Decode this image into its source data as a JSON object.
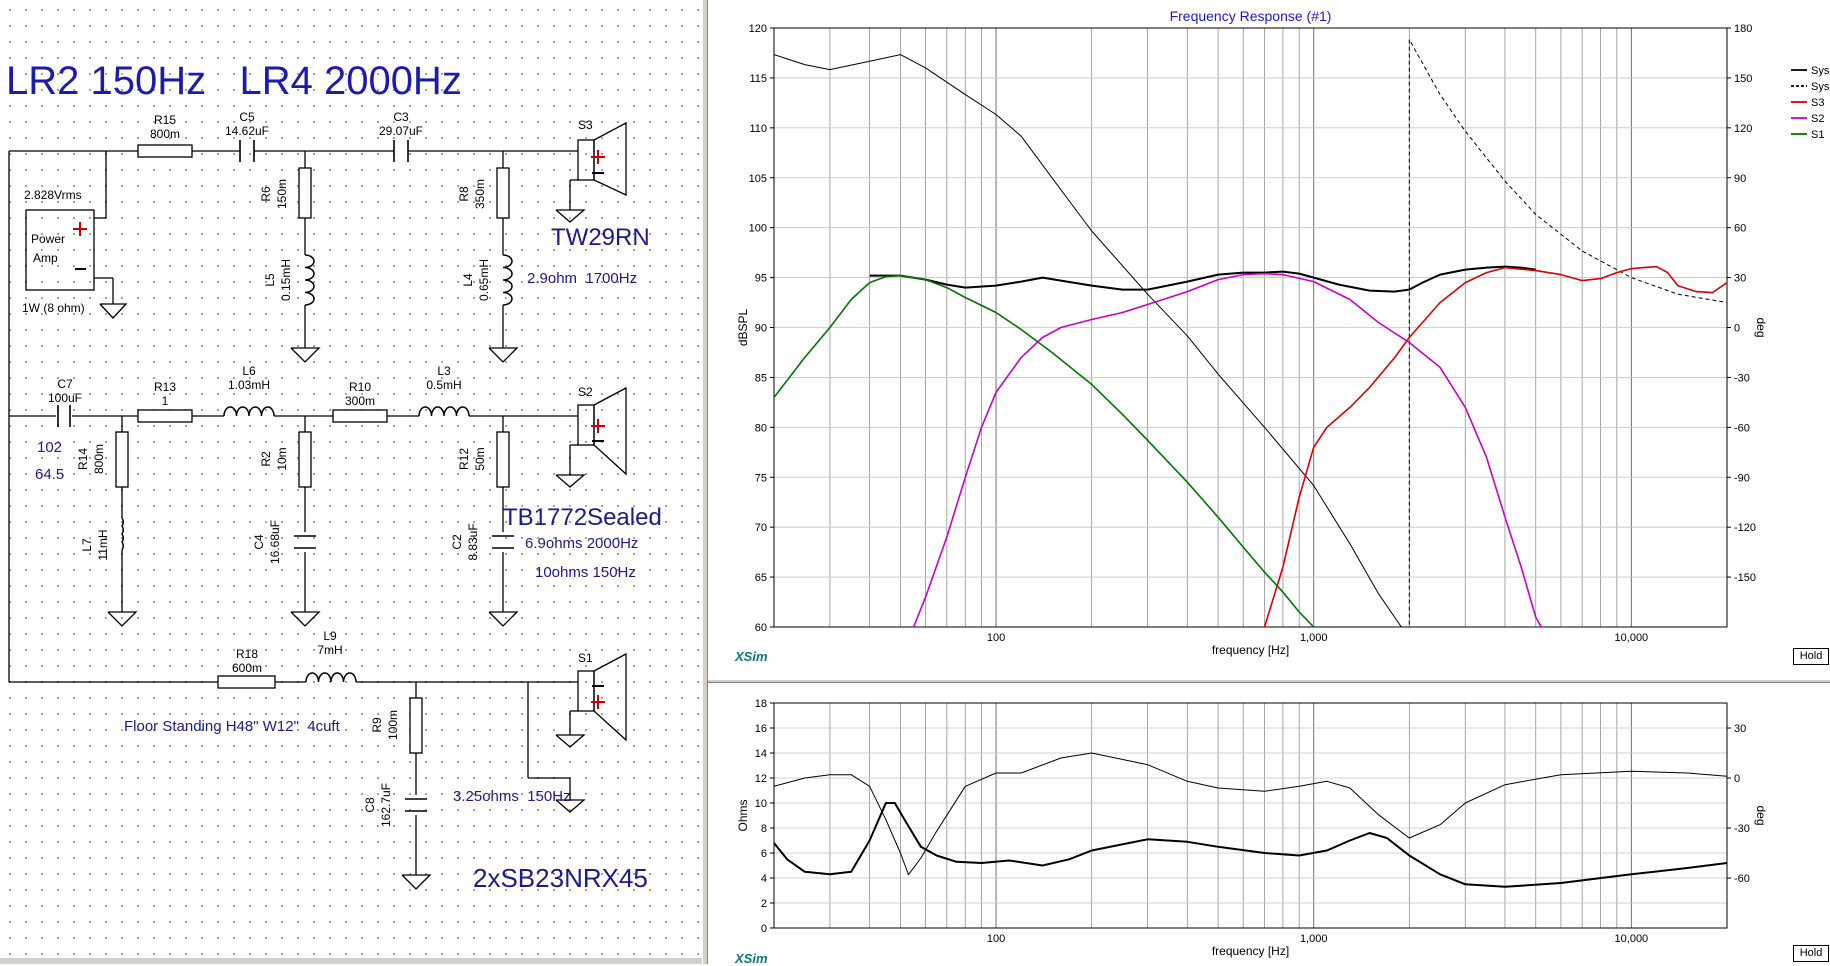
{
  "schematic": {
    "heading": "LR2 150Hz   LR4 2000Hz",
    "source": {
      "voltage": "2.828Vrms",
      "label1": "Power",
      "label2": "Amp",
      "load": "1W (8 ohm)"
    },
    "components": [
      {
        "id": "R15",
        "value": "800m"
      },
      {
        "id": "C5",
        "value": "14.62uF"
      },
      {
        "id": "C3",
        "value": "29.07uF"
      },
      {
        "id": "R6",
        "value": "150m"
      },
      {
        "id": "L5",
        "value": "0.15mH"
      },
      {
        "id": "R8",
        "value": "350m"
      },
      {
        "id": "L4",
        "value": "0.65mH"
      },
      {
        "id": "C7",
        "value": "100uF"
      },
      {
        "id": "R13",
        "value": "1"
      },
      {
        "id": "L6",
        "value": "1.03mH"
      },
      {
        "id": "R10",
        "value": "300m"
      },
      {
        "id": "L3",
        "value": "0.5mH"
      },
      {
        "id": "R14",
        "value": "800m"
      },
      {
        "id": "L7",
        "value": "11mH"
      },
      {
        "id": "R2",
        "value": "10m"
      },
      {
        "id": "C4",
        "value": "16.68uF"
      },
      {
        "id": "R12",
        "value": "50m"
      },
      {
        "id": "C2",
        "value": "8.83uF"
      },
      {
        "id": "R18",
        "value": "600m"
      },
      {
        "id": "L9",
        "value": "7mH"
      },
      {
        "id": "R9",
        "value": "100m"
      },
      {
        "id": "C8",
        "value": "162.7uF"
      }
    ],
    "speakers": {
      "s3": "S3",
      "s2": "S2",
      "s1": "S1"
    },
    "notes": {
      "tw_name": "TW29RN",
      "tw_info": "2.9ohm  1700Hz",
      "note102": "102",
      "note645": "64.5",
      "tb_name": "TB1772Sealed",
      "tb_info1": "6.9ohms 2000Hz",
      "tb_info2": "10ohms 150Hz",
      "floor": "Floor Standing H48\" W12\"  4cuft",
      "sb_info": "3.25ohms  150Hz",
      "sb_name": "2xSB23NRX45"
    }
  },
  "fr_panel": {
    "hold_label": "Hold",
    "brand": "XSim"
  },
  "imp_panel": {
    "hold_label": "Hold",
    "brand": "XSim"
  },
  "chart_data": [
    {
      "type": "line",
      "title": "Frequency Response (#1)",
      "xlabel": "frequency [Hz]",
      "ylabel": "dBSPL",
      "y2label": "deg",
      "xscale": "log",
      "xlim": [
        20,
        20000
      ],
      "ylim": [
        60,
        120
      ],
      "y2lim": [
        -180,
        180
      ],
      "x_ticks": [
        100,
        1000,
        10000
      ],
      "x_tick_labels": [
        "100",
        "1,000",
        "10,000"
      ],
      "y_ticks": [
        60,
        65,
        70,
        75,
        80,
        85,
        90,
        95,
        100,
        105,
        110,
        115,
        120
      ],
      "y2_ticks": [
        -150,
        -120,
        -90,
        -60,
        -30,
        0,
        30,
        60,
        90,
        120,
        150,
        180
      ],
      "grid": true,
      "legend_position": "right",
      "legend": [
        {
          "name": "Sys",
          "color": "#000000",
          "dash": false
        },
        {
          "name": "Sys°",
          "color": "#000000",
          "dash": true
        },
        {
          "name": "S3",
          "color": "#dd0000",
          "dash": false
        },
        {
          "name": "S2",
          "color": "#cc00cc",
          "dash": false
        },
        {
          "name": "S1",
          "color": "#007700",
          "dash": false
        }
      ],
      "series": [
        {
          "name": "Sys",
          "axis": "left",
          "color": "#000000",
          "width": 2,
          "dash": false,
          "points": [
            [
              40,
              95.2
            ],
            [
              50,
              95.2
            ],
            [
              60,
              94.8
            ],
            [
              70,
              94.3
            ],
            [
              80,
              94.0
            ],
            [
              100,
              94.2
            ],
            [
              120,
              94.6
            ],
            [
              140,
              95.0
            ],
            [
              160,
              94.7
            ],
            [
              200,
              94.2
            ],
            [
              250,
              93.8
            ],
            [
              300,
              93.8
            ],
            [
              400,
              94.6
            ],
            [
              500,
              95.3
            ],
            [
              600,
              95.5
            ],
            [
              700,
              95.5
            ],
            [
              800,
              95.6
            ],
            [
              900,
              95.4
            ],
            [
              1000,
              95.0
            ],
            [
              1200,
              94.3
            ],
            [
              1500,
              93.7
            ],
            [
              1800,
              93.6
            ],
            [
              2000,
              93.8
            ],
            [
              2200,
              94.5
            ],
            [
              2500,
              95.3
            ],
            [
              3000,
              95.8
            ],
            [
              3500,
              96.0
            ],
            [
              4000,
              96.1
            ],
            [
              4500,
              96.0
            ],
            [
              5000,
              95.8
            ]
          ]
        },
        {
          "name": "Sys°",
          "axis": "right",
          "color": "#000000",
          "width": 1,
          "dash": false,
          "points": [
            [
              20,
              164
            ],
            [
              25,
              158
            ],
            [
              30,
              155
            ],
            [
              40,
              160
            ],
            [
              50,
              164
            ],
            [
              60,
              156
            ],
            [
              80,
              140
            ],
            [
              100,
              128
            ],
            [
              120,
              115
            ],
            [
              150,
              90
            ],
            [
              200,
              58
            ],
            [
              300,
              20
            ],
            [
              400,
              -5
            ],
            [
              500,
              -28
            ],
            [
              700,
              -60
            ],
            [
              1000,
              -95
            ],
            [
              1300,
              -130
            ],
            [
              1600,
              -160
            ],
            [
              2000,
              -187
            ]
          ]
        },
        {
          "name": "Sys°",
          "axis": "right",
          "color": "#000000",
          "width": 1,
          "dash": true,
          "points": [
            [
              2000,
              -187
            ],
            [
              2000,
              173
            ],
            [
              2500,
              140
            ],
            [
              3000,
              118
            ],
            [
              4000,
              88
            ],
            [
              5000,
              68
            ],
            [
              7000,
              46
            ],
            [
              10000,
              30
            ],
            [
              14000,
              20
            ],
            [
              20000,
              15
            ]
          ]
        },
        {
          "name": "S3",
          "axis": "left",
          "color": "#dd0000",
          "width": 1.6,
          "dash": false,
          "points": [
            [
              700,
              60
            ],
            [
              800,
              66
            ],
            [
              900,
              73
            ],
            [
              1000,
              78
            ],
            [
              1100,
              80
            ],
            [
              1300,
              82
            ],
            [
              1500,
              84
            ],
            [
              1800,
              87
            ],
            [
              2000,
              89
            ],
            [
              2500,
              92.5
            ],
            [
              3000,
              94.5
            ],
            [
              3500,
              95.5
            ],
            [
              4000,
              96.0
            ],
            [
              5000,
              95.7
            ],
            [
              6000,
              95.3
            ],
            [
              7000,
              94.7
            ],
            [
              8000,
              94.9
            ],
            [
              9000,
              95.5
            ],
            [
              10000,
              95.9
            ],
            [
              12000,
              96.1
            ],
            [
              13000,
              95.5
            ],
            [
              14000,
              94.2
            ],
            [
              16000,
              93.6
            ],
            [
              18000,
              93.5
            ],
            [
              20000,
              94.5
            ]
          ]
        },
        {
          "name": "S2",
          "axis": "left",
          "color": "#cc00cc",
          "width": 1.6,
          "dash": false,
          "points": [
            [
              55,
              60
            ],
            [
              60,
              63
            ],
            [
              70,
              69
            ],
            [
              80,
              75
            ],
            [
              90,
              80
            ],
            [
              100,
              83.5
            ],
            [
              120,
              87
            ],
            [
              140,
              89
            ],
            [
              160,
              90
            ],
            [
              200,
              90.8
            ],
            [
              250,
              91.5
            ],
            [
              300,
              92.3
            ],
            [
              400,
              93.6
            ],
            [
              500,
              94.8
            ],
            [
              600,
              95.3
            ],
            [
              700,
              95.4
            ],
            [
              800,
              95.3
            ],
            [
              1000,
              94.6
            ],
            [
              1300,
              92.8
            ],
            [
              1600,
              90.5
            ],
            [
              2000,
              88.5
            ],
            [
              2500,
              86
            ],
            [
              3000,
              82
            ],
            [
              3500,
              77
            ],
            [
              4000,
              71
            ],
            [
              4500,
              66
            ],
            [
              5000,
              61
            ],
            [
              5200,
              60
            ]
          ]
        },
        {
          "name": "S1",
          "axis": "left",
          "color": "#007700",
          "width": 1.6,
          "dash": false,
          "points": [
            [
              20,
              83
            ],
            [
              25,
              87
            ],
            [
              30,
              90
            ],
            [
              35,
              92.8
            ],
            [
              40,
              94.5
            ],
            [
              45,
              95.1
            ],
            [
              50,
              95.2
            ],
            [
              60,
              94.8
            ],
            [
              70,
              94
            ],
            [
              80,
              93
            ],
            [
              100,
              91.5
            ],
            [
              120,
              89.8
            ],
            [
              150,
              87.5
            ],
            [
              200,
              84.3
            ],
            [
              250,
              81.3
            ],
            [
              300,
              78.7
            ],
            [
              400,
              74.5
            ],
            [
              500,
              71
            ],
            [
              600,
              68
            ],
            [
              700,
              65.5
            ],
            [
              800,
              63.5
            ],
            [
              900,
              61.5
            ],
            [
              1000,
              60
            ]
          ]
        }
      ]
    },
    {
      "type": "line",
      "title": "",
      "xlabel": "frequency [Hz]",
      "ylabel": "Ohms",
      "y2label": "deg",
      "xscale": "log",
      "xlim": [
        20,
        20000
      ],
      "ylim": [
        0,
        18
      ],
      "y2lim": [
        -90,
        45
      ],
      "x_ticks": [
        100,
        1000,
        10000
      ],
      "x_tick_labels": [
        "100",
        "1,000",
        "10,000"
      ],
      "y_ticks": [
        0,
        2,
        4,
        6,
        8,
        10,
        12,
        14,
        16,
        18
      ],
      "y2_ticks": [
        -60,
        -30,
        0,
        30
      ],
      "grid": true,
      "series": [
        {
          "name": "Ohms",
          "axis": "left",
          "color": "#000000",
          "width": 2,
          "dash": false,
          "points": [
            [
              20,
              6.8
            ],
            [
              22,
              5.5
            ],
            [
              25,
              4.5
            ],
            [
              30,
              4.3
            ],
            [
              35,
              4.5
            ],
            [
              40,
              7
            ],
            [
              45,
              10
            ],
            [
              48,
              10
            ],
            [
              52,
              8.5
            ],
            [
              58,
              6.5
            ],
            [
              65,
              5.8
            ],
            [
              75,
              5.3
            ],
            [
              90,
              5.2
            ],
            [
              110,
              5.4
            ],
            [
              140,
              5.0
            ],
            [
              170,
              5.5
            ],
            [
              200,
              6.2
            ],
            [
              300,
              7.1
            ],
            [
              400,
              6.9
            ],
            [
              500,
              6.5
            ],
            [
              700,
              6.0
            ],
            [
              900,
              5.8
            ],
            [
              1100,
              6.2
            ],
            [
              1300,
              7.0
            ],
            [
              1500,
              7.6
            ],
            [
              1700,
              7.2
            ],
            [
              2000,
              5.8
            ],
            [
              2500,
              4.3
            ],
            [
              3000,
              3.5
            ],
            [
              4000,
              3.3
            ],
            [
              6000,
              3.6
            ],
            [
              10000,
              4.3
            ],
            [
              15000,
              4.8
            ],
            [
              20000,
              5.2
            ]
          ]
        },
        {
          "name": "Phase",
          "axis": "right",
          "color": "#000000",
          "width": 1,
          "dash": false,
          "points": [
            [
              20,
              -5
            ],
            [
              25,
              0
            ],
            [
              30,
              2
            ],
            [
              35,
              2
            ],
            [
              40,
              -5
            ],
            [
              45,
              -25
            ],
            [
              50,
              -45
            ],
            [
              53,
              -58
            ],
            [
              58,
              -48
            ],
            [
              65,
              -32
            ],
            [
              80,
              -5
            ],
            [
              100,
              3
            ],
            [
              120,
              3
            ],
            [
              160,
              12
            ],
            [
              200,
              15
            ],
            [
              300,
              8
            ],
            [
              400,
              -2
            ],
            [
              500,
              -6
            ],
            [
              700,
              -8
            ],
            [
              900,
              -5
            ],
            [
              1100,
              -2
            ],
            [
              1300,
              -6
            ],
            [
              1600,
              -22
            ],
            [
              2000,
              -36
            ],
            [
              2500,
              -28
            ],
            [
              3000,
              -15
            ],
            [
              4000,
              -4
            ],
            [
              6000,
              2
            ],
            [
              10000,
              4
            ],
            [
              15000,
              3
            ],
            [
              20000,
              1
            ]
          ]
        }
      ]
    }
  ]
}
